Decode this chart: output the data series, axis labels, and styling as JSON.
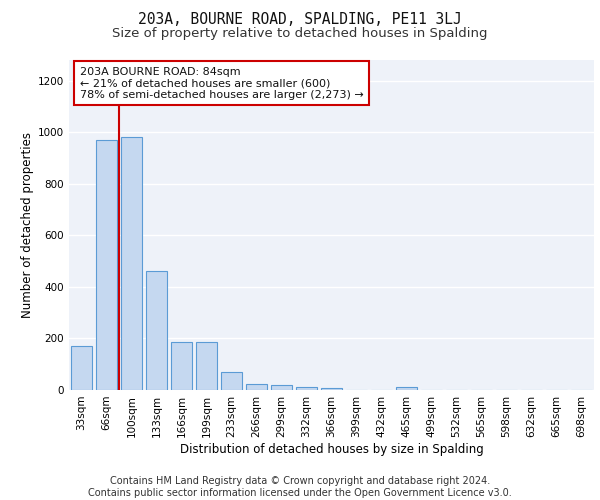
{
  "title_line1": "203A, BOURNE ROAD, SPALDING, PE11 3LJ",
  "title_line2": "Size of property relative to detached houses in Spalding",
  "xlabel": "Distribution of detached houses by size in Spalding",
  "ylabel": "Number of detached properties",
  "footnote": "Contains HM Land Registry data © Crown copyright and database right 2024.\nContains public sector information licensed under the Open Government Licence v3.0.",
  "categories": [
    "33sqm",
    "66sqm",
    "100sqm",
    "133sqm",
    "166sqm",
    "199sqm",
    "233sqm",
    "266sqm",
    "299sqm",
    "332sqm",
    "366sqm",
    "399sqm",
    "432sqm",
    "465sqm",
    "499sqm",
    "532sqm",
    "565sqm",
    "598sqm",
    "632sqm",
    "665sqm",
    "698sqm"
  ],
  "values": [
    170,
    970,
    980,
    460,
    185,
    185,
    70,
    25,
    18,
    12,
    7,
    0,
    0,
    12,
    0,
    0,
    0,
    0,
    0,
    0,
    0
  ],
  "bar_color": "#c5d8f0",
  "bar_edge_color": "#5b9bd5",
  "annotation_text": "203A BOURNE ROAD: 84sqm\n← 21% of detached houses are smaller (600)\n78% of semi-detached houses are larger (2,273) →",
  "vline_x": 1.5,
  "vline_color": "#cc0000",
  "annotation_box_color": "#ffffff",
  "annotation_box_edge_color": "#cc0000",
  "ylim": [
    0,
    1280
  ],
  "yticks": [
    0,
    200,
    400,
    600,
    800,
    1000,
    1200
  ],
  "background_color": "#eef2f9",
  "grid_color": "#ffffff",
  "title_fontsize": 10.5,
  "subtitle_fontsize": 9.5,
  "axis_label_fontsize": 8.5,
  "tick_fontsize": 7.5,
  "annotation_fontsize": 8,
  "footnote_fontsize": 7
}
